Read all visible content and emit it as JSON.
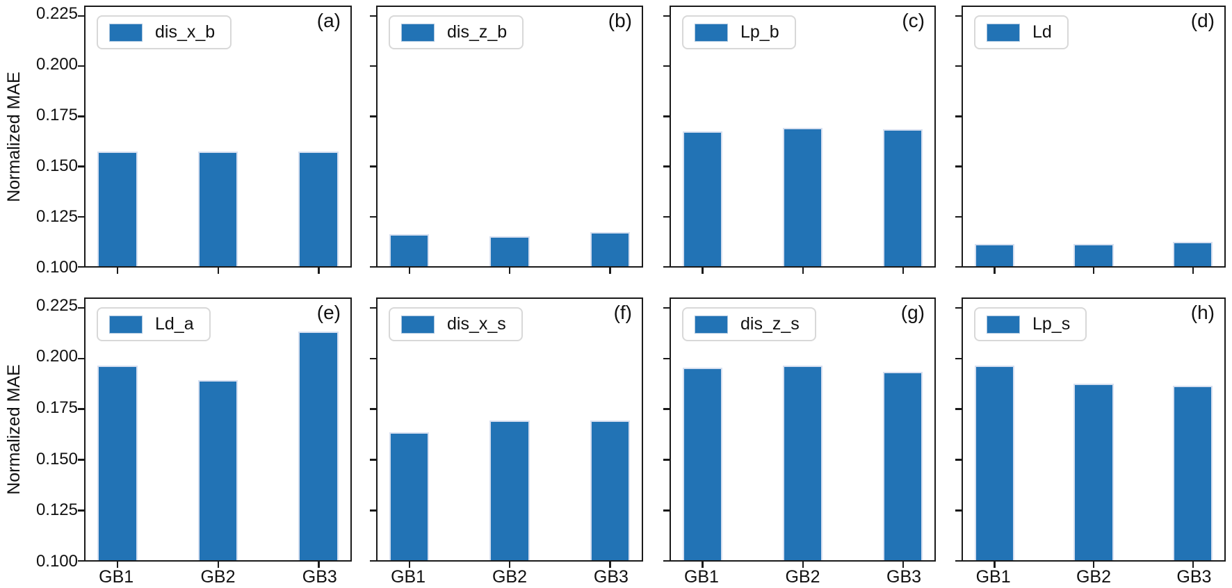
{
  "figure": {
    "ylabel": "Normalized MAE",
    "background": "#ffffff",
    "bar_color": "#2273b5",
    "bar_edge_color": "#d6dff0",
    "axis_color": "#1a1a1a",
    "categories": [
      "GB1",
      "GB2",
      "GB3"
    ],
    "ytick_labels": [
      "0.225",
      "0.200",
      "0.175",
      "0.150",
      "0.125",
      "0.100"
    ]
  },
  "chart_data": [
    {
      "type": "bar",
      "panel_label": "(a)",
      "legend": "dis_x_b",
      "categories": [
        "GB1",
        "GB2",
        "GB3"
      ],
      "values": [
        0.157,
        0.157,
        0.157
      ],
      "ylabel": "Normalized MAE",
      "ylim": [
        0.1,
        0.229
      ],
      "yticks": [
        0.225,
        0.2,
        0.175,
        0.15,
        0.125,
        0.1
      ],
      "grid": false,
      "legend_position": "upper-left"
    },
    {
      "type": "bar",
      "panel_label": "(b)",
      "legend": "dis_z_b",
      "categories": [
        "GB1",
        "GB2",
        "GB3"
      ],
      "values": [
        0.116,
        0.115,
        0.117
      ],
      "ylabel": "Normalized MAE",
      "ylim": [
        0.1,
        0.229
      ],
      "yticks": [
        0.225,
        0.2,
        0.175,
        0.15,
        0.125,
        0.1
      ],
      "grid": false,
      "legend_position": "upper-left"
    },
    {
      "type": "bar",
      "panel_label": "(c)",
      "legend": "Lp_b",
      "categories": [
        "GB1",
        "GB2",
        "GB3"
      ],
      "values": [
        0.167,
        0.169,
        0.168
      ],
      "ylabel": "Normalized MAE",
      "ylim": [
        0.1,
        0.229
      ],
      "yticks": [
        0.225,
        0.2,
        0.175,
        0.15,
        0.125,
        0.1
      ],
      "grid": false,
      "legend_position": "upper-left"
    },
    {
      "type": "bar",
      "panel_label": "(d)",
      "legend": "Ld",
      "categories": [
        "GB1",
        "GB2",
        "GB3"
      ],
      "values": [
        0.111,
        0.111,
        0.112
      ],
      "ylabel": "Normalized MAE",
      "ylim": [
        0.1,
        0.229
      ],
      "yticks": [
        0.225,
        0.2,
        0.175,
        0.15,
        0.125,
        0.1
      ],
      "grid": false,
      "legend_position": "upper-left"
    },
    {
      "type": "bar",
      "panel_label": "(e)",
      "legend": "Ld_a",
      "categories": [
        "GB1",
        "GB2",
        "GB3"
      ],
      "values": [
        0.196,
        0.189,
        0.213
      ],
      "ylabel": "Normalized MAE",
      "ylim": [
        0.1,
        0.229
      ],
      "yticks": [
        0.225,
        0.2,
        0.175,
        0.15,
        0.125,
        0.1
      ],
      "grid": false,
      "legend_position": "upper-left"
    },
    {
      "type": "bar",
      "panel_label": "(f)",
      "legend": "dis_x_s",
      "categories": [
        "GB1",
        "GB2",
        "GB3"
      ],
      "values": [
        0.163,
        0.169,
        0.169
      ],
      "ylabel": "Normalized MAE",
      "ylim": [
        0.1,
        0.229
      ],
      "yticks": [
        0.225,
        0.2,
        0.175,
        0.15,
        0.125,
        0.1
      ],
      "grid": false,
      "legend_position": "upper-left"
    },
    {
      "type": "bar",
      "panel_label": "(g)",
      "legend": "dis_z_s",
      "categories": [
        "GB1",
        "GB2",
        "GB3"
      ],
      "values": [
        0.195,
        0.196,
        0.193
      ],
      "ylabel": "Normalized MAE",
      "ylim": [
        0.1,
        0.229
      ],
      "yticks": [
        0.225,
        0.2,
        0.175,
        0.15,
        0.125,
        0.1
      ],
      "grid": false,
      "legend_position": "upper-left"
    },
    {
      "type": "bar",
      "panel_label": "(h)",
      "legend": "Lp_s",
      "categories": [
        "GB1",
        "GB2",
        "GB3"
      ],
      "values": [
        0.196,
        0.187,
        0.186
      ],
      "ylabel": "Normalized MAE",
      "ylim": [
        0.1,
        0.229
      ],
      "yticks": [
        0.225,
        0.2,
        0.175,
        0.15,
        0.125,
        0.1
      ],
      "grid": false,
      "legend_position": "upper-left"
    }
  ]
}
